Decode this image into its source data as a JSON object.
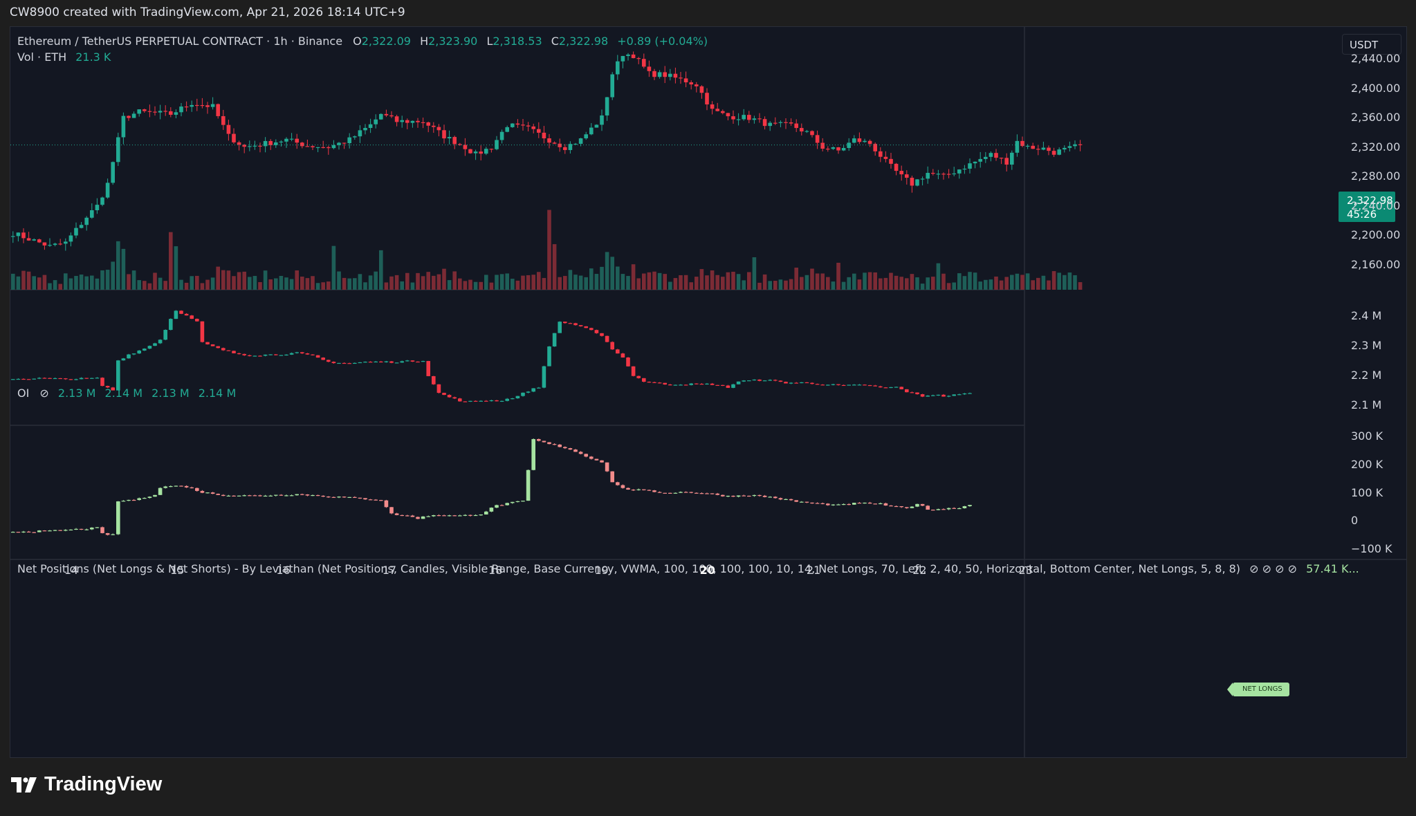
{
  "header": {
    "created_text": "CW8900 created with TradingView.com, Apr 21, 2026 18:14 UTC+9"
  },
  "main_legend": {
    "symbol": "Ethereum / TetherUS PERPETUAL CONTRACT · 1h · Binance",
    "o_label": "O",
    "o_value": "2,322.09",
    "h_label": "H",
    "h_value": "2,323.90",
    "l_label": "L",
    "l_value": "2,318.53",
    "c_label": "C",
    "c_value": "2,322.98",
    "change": "+0.89 (+0.04%)",
    "vol_label": "Vol · ETH",
    "vol_value": "21.3 K"
  },
  "oi_legend": {
    "label": "OI",
    "eye_icon": "⊘",
    "values": [
      "2.13 M",
      "2.14 M",
      "2.13 M",
      "2.14 M"
    ]
  },
  "np_legend": {
    "label": "Net Positions (Net Longs & Net Shorts) - By Leviathan (Net Positions, Candles, Visible Range, Base Currency, VWMA, 100, 100, 100, 100, 10, 14, Net Longs, 70, Left, 2, 40, 50, Horizontal, Bottom Center, Net Longs, 5, 8, 8)",
    "icons": "⊘ ⊘ ⊘ ⊘",
    "value": "57.41 K..."
  },
  "currency_button": "USDT",
  "last_price_tag": {
    "price": "2,322.98",
    "countdown": "45:26"
  },
  "net_longs_tag": "NET LONGS",
  "footer": {
    "brand": "TradingView"
  },
  "colors": {
    "up": "#22ab94",
    "down": "#f23645",
    "np_up": "#a6e3a1",
    "np_down": "#f28b8b",
    "bg": "#131722"
  },
  "chart_data": [
    {
      "type": "candlestick",
      "pane": "price",
      "symbol": "ETHUSDT.P",
      "interval": "1h",
      "y_ticks": [
        "2,440.00",
        "2,400.00",
        "2,360.00",
        "2,320.00",
        "2,280.00",
        "2,240.00",
        "2,200.00",
        "2,160.00"
      ],
      "y_tick_values": [
        2440,
        2400,
        2360,
        2320,
        2280,
        2240,
        2200,
        2160
      ],
      "ylim": [
        2126,
        2474
      ],
      "last_price": 2322.98,
      "x_ticks": [
        "14",
        "15",
        "16",
        "17",
        "18",
        "19",
        "20",
        "21",
        "22",
        "23"
      ],
      "x_tick_bold": [
        "20"
      ],
      "anchors": [
        [
          0,
          2203
        ],
        [
          7,
          2185
        ],
        [
          10,
          2190
        ],
        [
          14,
          2225
        ],
        [
          16,
          2240
        ],
        [
          18,
          2270
        ],
        [
          21,
          2360
        ],
        [
          24,
          2368
        ],
        [
          30,
          2365
        ],
        [
          34,
          2380
        ],
        [
          38,
          2375
        ],
        [
          41,
          2335
        ],
        [
          44,
          2320
        ],
        [
          48,
          2325
        ],
        [
          52,
          2330
        ],
        [
          56,
          2322
        ],
        [
          60,
          2320
        ],
        [
          64,
          2330
        ],
        [
          68,
          2350
        ],
        [
          70,
          2365
        ],
        [
          73,
          2355
        ],
        [
          78,
          2355
        ],
        [
          82,
          2335
        ],
        [
          86,
          2320
        ],
        [
          88,
          2310
        ],
        [
          91,
          2320
        ],
        [
          94,
          2350
        ],
        [
          98,
          2345
        ],
        [
          102,
          2330
        ],
        [
          105,
          2320
        ],
        [
          108,
          2330
        ],
        [
          112,
          2360
        ],
        [
          114,
          2420
        ],
        [
          116,
          2447
        ],
        [
          118,
          2445
        ],
        [
          121,
          2420
        ],
        [
          124,
          2418
        ],
        [
          128,
          2410
        ],
        [
          130,
          2405
        ],
        [
          133,
          2370
        ],
        [
          136,
          2362
        ],
        [
          140,
          2360
        ],
        [
          144,
          2350
        ],
        [
          148,
          2350
        ],
        [
          151,
          2340
        ],
        [
          154,
          2320
        ],
        [
          157,
          2315
        ],
        [
          160,
          2330
        ],
        [
          163,
          2325
        ],
        [
          166,
          2300
        ],
        [
          169,
          2280
        ],
        [
          171,
          2270
        ],
        [
          174,
          2285
        ],
        [
          177,
          2280
        ],
        [
          180,
          2290
        ],
        [
          183,
          2300
        ],
        [
          186,
          2310
        ],
        [
          189,
          2300
        ],
        [
          191,
          2328
        ],
        [
          193,
          2320
        ],
        [
          196,
          2318
        ],
        [
          198,
          2313
        ],
        [
          201,
          2318
        ],
        [
          203,
          2323
        ]
      ],
      "volume_by_hour": "volume bars shown under candles, spikes near 14 (day), 14.9, 17.0, 18.0, 19.9, 20.7"
    },
    {
      "type": "candlestick",
      "pane": "OI",
      "y_ticks": [
        "2.4 M",
        "2.3 M",
        "2.2 M",
        "2.1 M"
      ],
      "y_tick_values": [
        2.4,
        2.3,
        2.2,
        2.1
      ],
      "ylim": [
        2.055,
        2.465
      ],
      "anchors": [
        [
          0,
          2.188
        ],
        [
          6,
          2.19
        ],
        [
          10,
          2.187
        ],
        [
          16,
          2.19
        ],
        [
          17,
          2.165
        ],
        [
          19,
          2.15
        ],
        [
          20,
          2.25
        ],
        [
          22,
          2.27
        ],
        [
          25,
          2.29
        ],
        [
          28,
          2.32
        ],
        [
          30,
          2.39
        ],
        [
          31,
          2.42
        ],
        [
          33,
          2.4
        ],
        [
          35,
          2.38
        ],
        [
          36,
          2.31
        ],
        [
          39,
          2.29
        ],
        [
          42,
          2.275
        ],
        [
          45,
          2.268
        ],
        [
          50,
          2.27
        ],
        [
          54,
          2.275
        ],
        [
          57,
          2.265
        ],
        [
          60,
          2.245
        ],
        [
          64,
          2.24
        ],
        [
          67,
          2.245
        ],
        [
          72,
          2.245
        ],
        [
          76,
          2.248
        ],
        [
          78,
          2.25
        ],
        [
          79,
          2.2
        ],
        [
          81,
          2.14
        ],
        [
          84,
          2.12
        ],
        [
          86,
          2.11
        ],
        [
          89,
          2.115
        ],
        [
          93,
          2.115
        ],
        [
          96,
          2.13
        ],
        [
          98,
          2.148
        ],
        [
          100,
          2.16
        ],
        [
          102,
          2.3
        ],
        [
          104,
          2.38
        ],
        [
          106,
          2.375
        ],
        [
          109,
          2.36
        ],
        [
          112,
          2.33
        ],
        [
          114,
          2.29
        ],
        [
          116,
          2.26
        ],
        [
          118,
          2.2
        ],
        [
          120,
          2.18
        ],
        [
          124,
          2.17
        ],
        [
          128,
          2.17
        ],
        [
          133,
          2.17
        ],
        [
          136,
          2.16
        ],
        [
          138,
          2.18
        ],
        [
          143,
          2.185
        ],
        [
          147,
          2.175
        ],
        [
          150,
          2.175
        ],
        [
          154,
          2.17
        ],
        [
          158,
          2.165
        ],
        [
          162,
          2.168
        ],
        [
          165,
          2.158
        ],
        [
          168,
          2.16
        ],
        [
          170,
          2.145
        ],
        [
          173,
          2.13
        ],
        [
          175,
          2.135
        ],
        [
          177,
          2.13
        ],
        [
          180,
          2.135
        ],
        [
          182,
          2.14
        ]
      ]
    },
    {
      "type": "candlestick",
      "pane": "net_positions",
      "series_label": "Net Longs",
      "y_ticks": [
        "300 K",
        "200 K",
        "100 K",
        "0",
        "−100 K"
      ],
      "y_tick_values": [
        300,
        200,
        100,
        0,
        -100
      ],
      "ylim": [
        -117,
        318
      ],
      "anchors": [
        [
          0,
          -38
        ],
        [
          7,
          -36
        ],
        [
          12,
          -30
        ],
        [
          16,
          -25
        ],
        [
          17,
          -45
        ],
        [
          19,
          -50
        ],
        [
          20,
          70
        ],
        [
          24,
          78
        ],
        [
          27,
          95
        ],
        [
          28,
          118
        ],
        [
          30,
          125
        ],
        [
          33,
          122
        ],
        [
          36,
          102
        ],
        [
          40,
          92
        ],
        [
          45,
          90
        ],
        [
          50,
          92
        ],
        [
          54,
          95
        ],
        [
          58,
          90
        ],
        [
          62,
          85
        ],
        [
          66,
          80
        ],
        [
          70,
          75
        ],
        [
          72,
          25
        ],
        [
          75,
          18
        ],
        [
          77,
          10
        ],
        [
          80,
          22
        ],
        [
          85,
          18
        ],
        [
          89,
          25
        ],
        [
          92,
          55
        ],
        [
          95,
          65
        ],
        [
          97,
          70
        ],
        [
          99,
          290
        ],
        [
          101,
          278
        ],
        [
          104,
          265
        ],
        [
          106,
          255
        ],
        [
          109,
          230
        ],
        [
          112,
          210
        ],
        [
          114,
          140
        ],
        [
          116,
          115
        ],
        [
          120,
          108
        ],
        [
          124,
          100
        ],
        [
          128,
          103
        ],
        [
          132,
          98
        ],
        [
          136,
          88
        ],
        [
          140,
          92
        ],
        [
          144,
          85
        ],
        [
          148,
          72
        ],
        [
          150,
          67
        ],
        [
          154,
          60
        ],
        [
          157,
          56
        ],
        [
          160,
          62
        ],
        [
          163,
          63
        ],
        [
          165,
          60
        ],
        [
          167,
          52
        ],
        [
          170,
          45
        ],
        [
          172,
          62
        ],
        [
          174,
          41
        ],
        [
          177,
          43
        ],
        [
          180,
          48
        ],
        [
          182,
          57
        ]
      ]
    }
  ]
}
